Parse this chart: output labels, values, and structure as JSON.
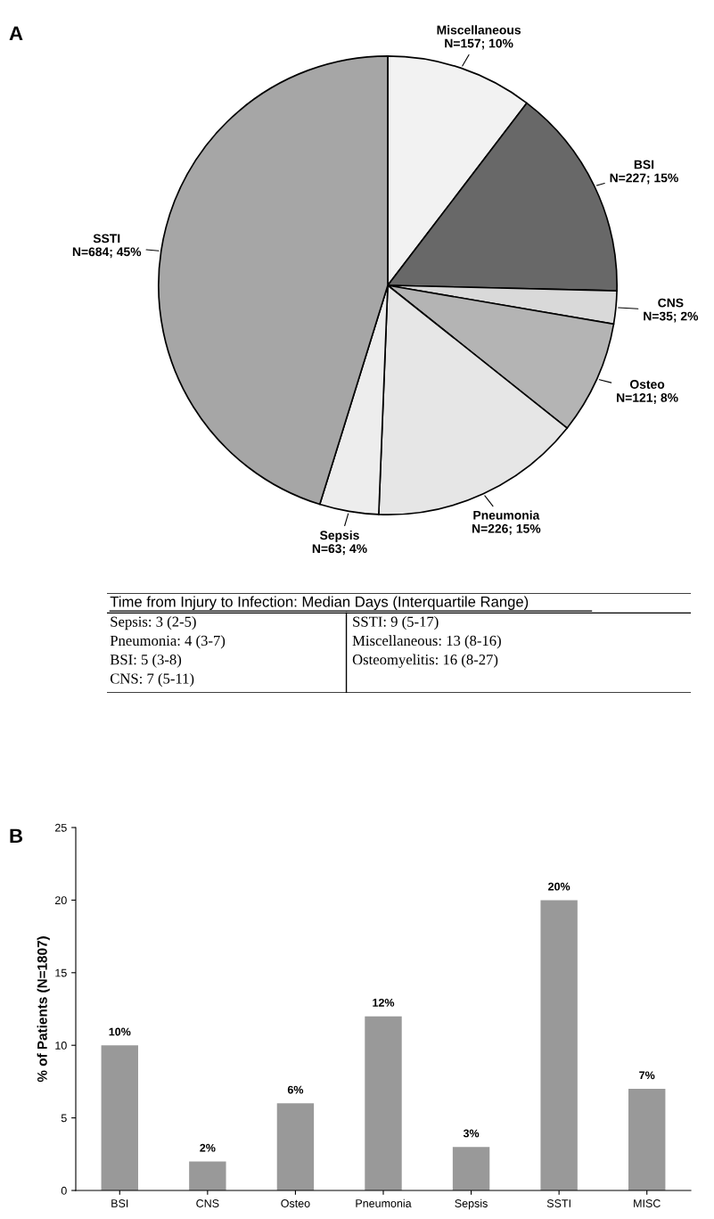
{
  "chart_data": [
    {
      "type": "pie",
      "title": "A",
      "categories": [
        "Miscellaneous",
        "BSI",
        "CNS",
        "Osteo",
        "Pneumonia",
        "Sepsis",
        "SSTI"
      ],
      "values": [
        157,
        227,
        35,
        121,
        226,
        63,
        684
      ],
      "value_labels": [
        "N=157; 10%",
        "N=227; 15%",
        "N=35; 2%",
        "N=121; 8%",
        "N=226; 15%",
        "N=63; 4%",
        "N=684; 45%"
      ],
      "colors": [
        "#f2f2f2",
        "#686868",
        "#d9d9d9",
        "#b4b4b4",
        "#e6e6e6",
        "#ededed",
        "#a6a6a6"
      ]
    },
    {
      "type": "other",
      "title": "Time from Injury to Infection: Median Days (Interquartile Range)",
      "annotations": [
        "Sepsis: 3 (2-5)",
        "Pneumonia: 4 (3-7)",
        "BSI: 5 (3-8)",
        "CNS: 7 (5-11)",
        "SSTI: 9 (5-17)",
        "Miscellaneous: 13 (8-16)",
        "Osteomyelitis: 16 (8-27)"
      ]
    },
    {
      "type": "bar",
      "title": "B",
      "categories": [
        "BSI",
        "CNS",
        "Osteo",
        "Pneumonia",
        "Sepsis",
        "SSTI",
        "MISC"
      ],
      "values": [
        10,
        2,
        6,
        12,
        3,
        20,
        7
      ],
      "value_labels": [
        "10%",
        "2%",
        "6%",
        "12%",
        "3%",
        "20%",
        "7%"
      ],
      "color": "#999999",
      "ylabel": "% of Patients (N=1807)",
      "ylim": [
        0,
        25
      ],
      "yticks": [
        0,
        5,
        10,
        15,
        20,
        25
      ],
      "grid": false
    }
  ]
}
